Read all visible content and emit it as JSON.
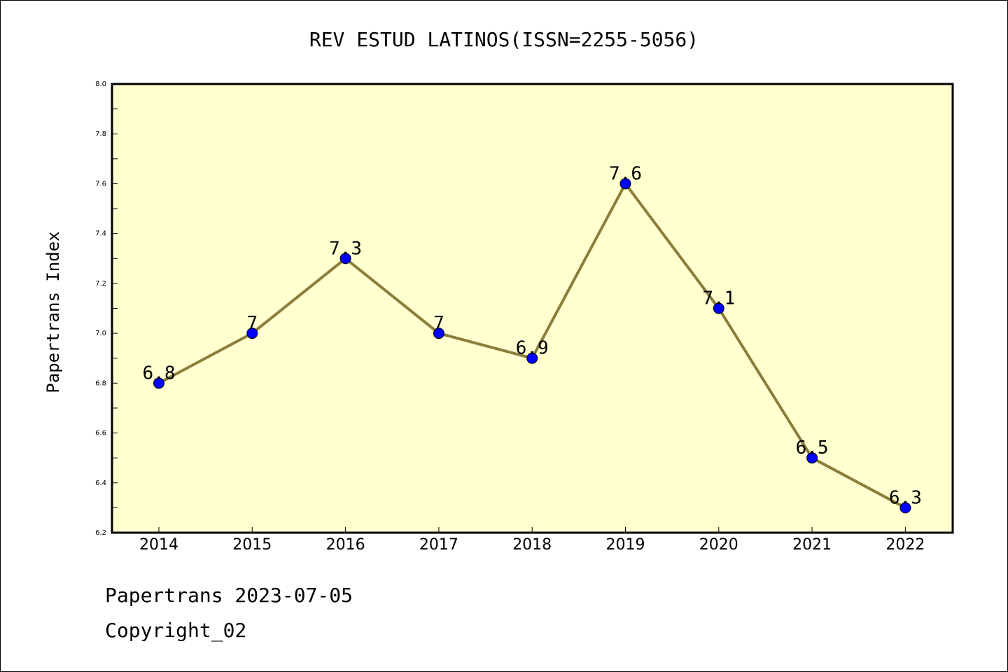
{
  "chart_data": {
    "type": "line",
    "title": "REV ESTUD LATINOS(ISSN=2255-5056)",
    "xlabel": "",
    "ylabel": "Papertrans Index",
    "categories": [
      "2014",
      "2015",
      "2016",
      "2017",
      "2018",
      "2019",
      "2020",
      "2021",
      "2022"
    ],
    "series": [
      {
        "values": [
          6.8,
          7.0,
          7.3,
          7.0,
          6.9,
          7.6,
          7.1,
          6.5,
          6.3
        ],
        "labels": [
          "6.8",
          "7",
          "7.3",
          "7",
          "6.9",
          "7.6",
          "7.1",
          "6.5",
          "6.3"
        ]
      }
    ],
    "ylim": [
      6.2,
      8.0
    ],
    "yticks": [
      "6.2",
      "6.4",
      "6.6",
      "6.8",
      "7.0",
      "7.2",
      "7.4",
      "7.6",
      "7.8",
      "8.0"
    ],
    "grid": false,
    "colors": {
      "plot_background": "#ffffd0",
      "line": "#8b7d3a",
      "marker": "#0000ff"
    }
  },
  "footer": {
    "date_line": "Papertrans 2023-07-05",
    "copyright_line": "Copyright_02"
  }
}
